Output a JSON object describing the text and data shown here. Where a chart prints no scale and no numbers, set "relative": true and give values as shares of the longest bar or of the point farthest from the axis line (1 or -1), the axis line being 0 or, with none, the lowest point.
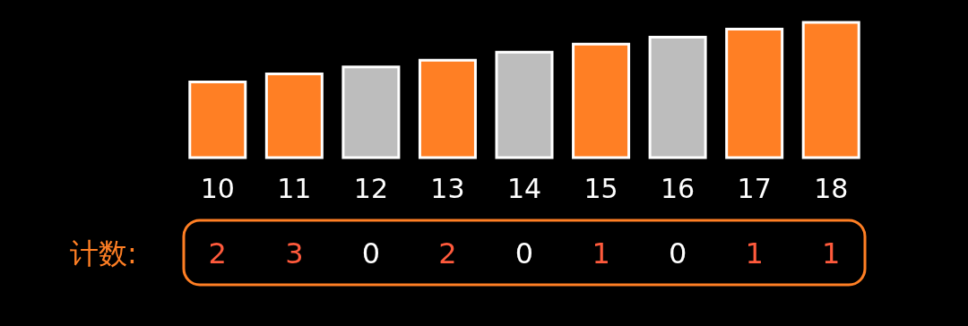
{
  "chart_data": {
    "type": "bar",
    "relative": true,
    "categories": [
      "10",
      "11",
      "12",
      "13",
      "14",
      "15",
      "16",
      "17",
      "18"
    ],
    "values": [
      0.56,
      0.62,
      0.67,
      0.72,
      0.78,
      0.84,
      0.89,
      0.95,
      1
    ],
    "colors": [
      "#ff7f24",
      "#ff7f24",
      "#bdbdbd",
      "#ff7f24",
      "#bdbdbd",
      "#ff7f24",
      "#bdbdbd",
      "#ff7f24",
      "#ff7f24"
    ],
    "grid": false,
    "annotations": [
      "计数:",
      "2",
      "3",
      "0",
      "2",
      "0",
      "1",
      "0",
      "1",
      "1"
    ]
  }
}
